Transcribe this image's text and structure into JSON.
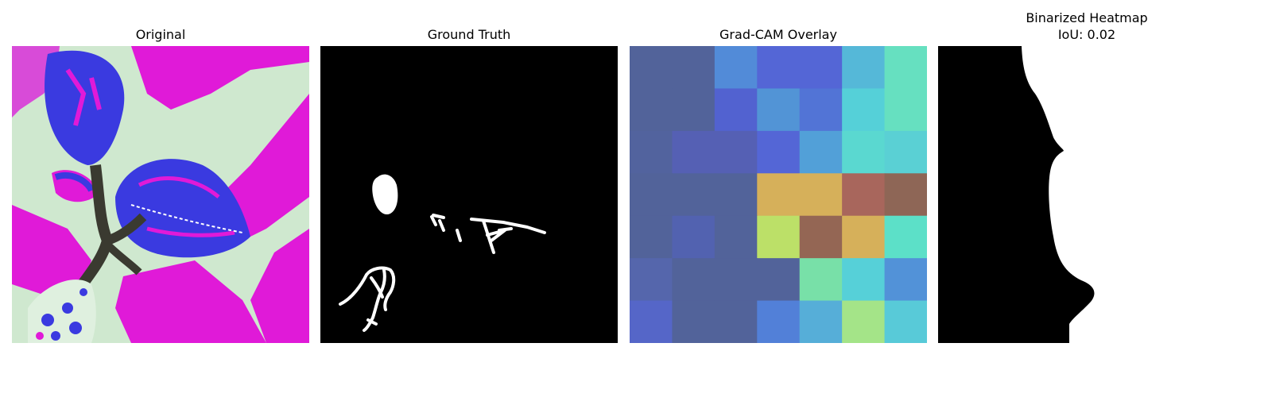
{
  "figure": {
    "panels": [
      {
        "title": "Original"
      },
      {
        "title": "Ground Truth"
      },
      {
        "title": "Grad-CAM Overlay"
      },
      {
        "title": "Binarized Heatmap",
        "subtitle": "IoU: 0.02"
      }
    ]
  },
  "colors": {
    "background": "#ffffff",
    "mask_foreground": "#ffffff",
    "mask_background": "#000000",
    "leaf_blue": "#3a3ae0",
    "leaf_magenta": "#e01ad8",
    "backdrop_green": "#cfe8cf"
  },
  "gradcam": {
    "grid": [
      [
        "#52639a",
        "#52639a",
        "#528bd8",
        "#5466d6",
        "#5466d6",
        "#55b8d8",
        "#66e0c0"
      ],
      [
        "#52639a",
        "#52639a",
        "#5262d0",
        "#5294d6",
        "#5274d6",
        "#55d0d8",
        "#66e0c0"
      ],
      [
        "#52639e",
        "#5560b4",
        "#5560b4",
        "#5466d6",
        "#52a0d8",
        "#5ad8d0",
        "#5ad0d4"
      ],
      [
        "#52639a",
        "#52639a",
        "#52639a",
        "#d6b05a",
        "#d6b05a",
        "#a8665c",
        "#8e6656"
      ],
      [
        "#52639a",
        "#5262b0",
        "#52639a",
        "#bce068",
        "#946654",
        "#d6b05a",
        "#5ce0c8"
      ],
      [
        "#5566ac",
        "#52639a",
        "#52639a",
        "#52639a",
        "#78e0a8",
        "#56d0d8",
        "#5292d8"
      ],
      [
        "#5566c8",
        "#52639a",
        "#52639a",
        "#5280d8",
        "#56aed8",
        "#a4e488",
        "#58cad8"
      ]
    ]
  }
}
